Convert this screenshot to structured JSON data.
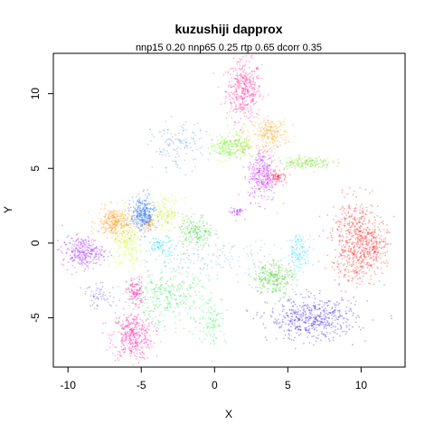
{
  "chart_data": {
    "type": "scatter",
    "title": "kuzushiji dapprox",
    "subtitle": "nnp15 0.20 nnp65 0.25 rtp 0.65 dcorr 0.35",
    "xlabel": "X",
    "ylabel": "Y",
    "xlim": [
      -11,
      13
    ],
    "ylim": [
      -8.3,
      12.7
    ],
    "x_ticks": [
      -10,
      -5,
      0,
      5,
      10
    ],
    "y_ticks": [
      -5,
      0,
      5,
      10
    ],
    "x_tick_labels": [
      "-10",
      "-5",
      "0",
      "5",
      "10"
    ],
    "y_tick_labels": [
      "-5",
      "0",
      "5",
      "10"
    ],
    "grid": false,
    "legend": "none",
    "clusters": [
      {
        "center": [
          2.0,
          10.2
        ],
        "spread": [
          0.6,
          1.0
        ],
        "count": 420,
        "color": "#ff2e9a"
      },
      {
        "center": [
          -5.6,
          -6.2
        ],
        "spread": [
          0.7,
          0.8
        ],
        "count": 380,
        "color": "#ff1aa6"
      },
      {
        "center": [
          -5.4,
          -3.3
        ],
        "spread": [
          0.3,
          0.5
        ],
        "count": 120,
        "color": "#ff1aa6"
      },
      {
        "center": [
          3.8,
          7.3
        ],
        "spread": [
          0.6,
          0.5
        ],
        "count": 250,
        "color": "#ffae33"
      },
      {
        "center": [
          -6.8,
          1.4
        ],
        "spread": [
          0.6,
          0.5
        ],
        "count": 320,
        "color": "#ff9a1f"
      },
      {
        "center": [
          -4.6,
          1.2
        ],
        "spread": [
          0.2,
          0.3
        ],
        "count": 60,
        "color": "#ff9a1f"
      },
      {
        "center": [
          3.3,
          4.6
        ],
        "spread": [
          0.5,
          0.9
        ],
        "count": 320,
        "color": "#c41cff"
      },
      {
        "center": [
          -9.0,
          -0.6
        ],
        "spread": [
          0.7,
          0.5
        ],
        "count": 280,
        "color": "#a21cff"
      },
      {
        "center": [
          1.5,
          2.1
        ],
        "spread": [
          0.25,
          0.2
        ],
        "count": 40,
        "color": "#a21cff"
      },
      {
        "center": [
          0.7,
          6.4
        ],
        "spread": [
          0.5,
          0.4
        ],
        "count": 150,
        "color": "#6ef01a"
      },
      {
        "center": [
          1.9,
          6.7
        ],
        "spread": [
          0.3,
          0.5
        ],
        "count": 120,
        "color": "#8fe81c"
      },
      {
        "center": [
          6.2,
          5.4
        ],
        "spread": [
          0.9,
          0.2
        ],
        "count": 150,
        "color": "#66e018"
      },
      {
        "center": [
          -1.3,
          0.7
        ],
        "spread": [
          0.6,
          0.6
        ],
        "count": 180,
        "color": "#33d133"
      },
      {
        "center": [
          -5.9,
          -0.2
        ],
        "spread": [
          0.5,
          0.8
        ],
        "count": 200,
        "color": "#c8ff1a"
      },
      {
        "center": [
          -3.4,
          2.0
        ],
        "spread": [
          0.6,
          0.5
        ],
        "count": 160,
        "color": "#c8f024"
      },
      {
        "center": [
          -4.9,
          1.9
        ],
        "spread": [
          0.4,
          0.6
        ],
        "count": 300,
        "color": "#1f6ef5"
      },
      {
        "center": [
          -2.5,
          6.5
        ],
        "spread": [
          0.9,
          0.8
        ],
        "count": 130,
        "color": "#5b8ee6"
      },
      {
        "center": [
          -3.6,
          -0.2
        ],
        "spread": [
          0.5,
          0.3
        ],
        "count": 80,
        "color": "#1ad6ff"
      },
      {
        "center": [
          5.8,
          -0.6
        ],
        "spread": [
          0.4,
          0.6
        ],
        "count": 120,
        "color": "#1ad6ff"
      },
      {
        "center": [
          4.0,
          -2.3
        ],
        "spread": [
          0.7,
          0.6
        ],
        "count": 260,
        "color": "#33cc1a"
      },
      {
        "center": [
          -3.2,
          -3.6
        ],
        "spread": [
          1.4,
          0.9
        ],
        "count": 320,
        "color": "#2ee85c"
      },
      {
        "center": [
          -0.2,
          -5.2
        ],
        "spread": [
          0.5,
          0.8
        ],
        "count": 100,
        "color": "#2ee85c"
      },
      {
        "center": [
          6.7,
          -5.1
        ],
        "spread": [
          1.5,
          0.7
        ],
        "count": 500,
        "color": "#3a1ae8"
      },
      {
        "center": [
          -7.8,
          -3.6
        ],
        "spread": [
          0.6,
          0.4
        ],
        "count": 60,
        "color": "#5d4be8"
      },
      {
        "center": [
          9.6,
          0.1
        ],
        "spread": [
          0.8,
          1.4
        ],
        "count": 550,
        "color": "#ff1a1a"
      },
      {
        "center": [
          11.0,
          -0.3
        ],
        "spread": [
          0.4,
          0.9
        ],
        "count": 150,
        "color": "#ff1a1a"
      },
      {
        "center": [
          4.3,
          4.4
        ],
        "spread": [
          0.3,
          0.2
        ],
        "count": 60,
        "color": "#ff1a1a"
      },
      {
        "center": [
          -0.5,
          -1.0
        ],
        "spread": [
          2.5,
          0.7
        ],
        "count": 160,
        "color": "#7fa8e6"
      }
    ]
  }
}
